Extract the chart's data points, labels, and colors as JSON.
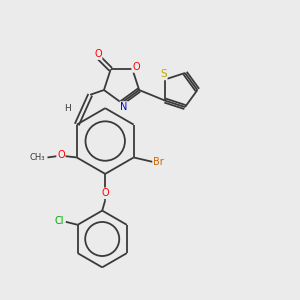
{
  "background_color": "#ebebeb",
  "bond_color": "#3a3a3a",
  "atom_colors": {
    "O": "#ff0000",
    "N": "#0000cc",
    "S": "#bbaa00",
    "Br": "#cc6600",
    "Cl": "#00aa00",
    "H": "#3a3a3a",
    "C": "#3a3a3a"
  },
  "figsize": [
    3.0,
    3.0
  ],
  "dpi": 100,
  "lw": 1.3
}
